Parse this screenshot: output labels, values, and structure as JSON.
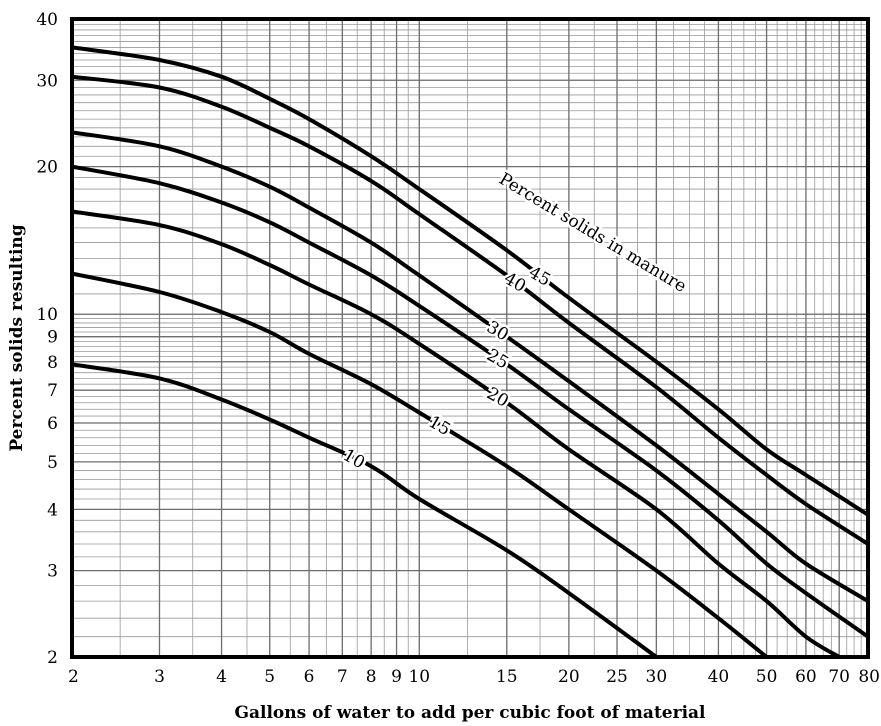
{
  "chart_data": {
    "type": "line",
    "title": "",
    "xlabel": "Gallons of water to add per cubic foot of material",
    "ylabel": "Percent solids resulting",
    "xscale": "log",
    "yscale": "log",
    "xlim": [
      2,
      80
    ],
    "ylim": [
      2,
      40
    ],
    "grid": true,
    "x_ticks": [
      2,
      3,
      4,
      5,
      6,
      7,
      8,
      9,
      10,
      15,
      20,
      25,
      30,
      40,
      50,
      60,
      70,
      80
    ],
    "y_ticks": [
      2,
      3,
      4,
      5,
      6,
      7,
      8,
      9,
      10,
      20,
      30,
      40
    ],
    "annotation": "Percent solids in manure",
    "series": [
      {
        "name": "10",
        "x": [
          2,
          3,
          4,
          5,
          6,
          8,
          10,
          15,
          20,
          30
        ],
        "y": [
          7.9,
          7.4,
          6.7,
          6.1,
          5.6,
          4.9,
          4.2,
          3.3,
          2.7,
          2.0
        ]
      },
      {
        "name": "15",
        "x": [
          2,
          3,
          4,
          5,
          6,
          8,
          10,
          15,
          20,
          30,
          40,
          50
        ],
        "y": [
          12.1,
          11.1,
          10.1,
          9.2,
          8.3,
          7.2,
          6.3,
          4.9,
          4.0,
          3.0,
          2.4,
          2.0
        ]
      },
      {
        "name": "20",
        "x": [
          2,
          3,
          4,
          5,
          6,
          8,
          10,
          15,
          20,
          30,
          40,
          50,
          60,
          70
        ],
        "y": [
          16.2,
          15.2,
          13.9,
          12.6,
          11.5,
          10.0,
          8.7,
          6.6,
          5.3,
          4.0,
          3.1,
          2.6,
          2.2,
          2.0
        ]
      },
      {
        "name": "25",
        "x": [
          2,
          3,
          4,
          5,
          6,
          8,
          10,
          15,
          20,
          30,
          40,
          50,
          60,
          80
        ],
        "y": [
          20.0,
          18.5,
          16.9,
          15.4,
          14.0,
          12.0,
          10.4,
          7.9,
          6.4,
          4.8,
          3.8,
          3.1,
          2.7,
          2.2
        ]
      },
      {
        "name": "30",
        "x": [
          2,
          3,
          4,
          5,
          6,
          8,
          10,
          15,
          20,
          30,
          40,
          50,
          60,
          80
        ],
        "y": [
          23.5,
          22.0,
          20.0,
          18.2,
          16.5,
          14.0,
          12.0,
          9.0,
          7.3,
          5.4,
          4.3,
          3.6,
          3.1,
          2.6
        ]
      },
      {
        "name": "40",
        "x": [
          2,
          3,
          4,
          5,
          6,
          8,
          10,
          15,
          20,
          30,
          40,
          50,
          60,
          80
        ],
        "y": [
          30.5,
          29.0,
          26.5,
          24.0,
          22.0,
          18.7,
          16.0,
          12.0,
          9.6,
          7.1,
          5.6,
          4.7,
          4.1,
          3.4
        ]
      },
      {
        "name": "45",
        "x": [
          2,
          3,
          4,
          5,
          6,
          8,
          10,
          15,
          20,
          30,
          40,
          50,
          60,
          80
        ],
        "y": [
          35.0,
          33.0,
          30.5,
          27.5,
          25.0,
          21.0,
          18.0,
          13.5,
          10.8,
          8.0,
          6.4,
          5.3,
          4.7,
          3.9
        ]
      }
    ]
  }
}
